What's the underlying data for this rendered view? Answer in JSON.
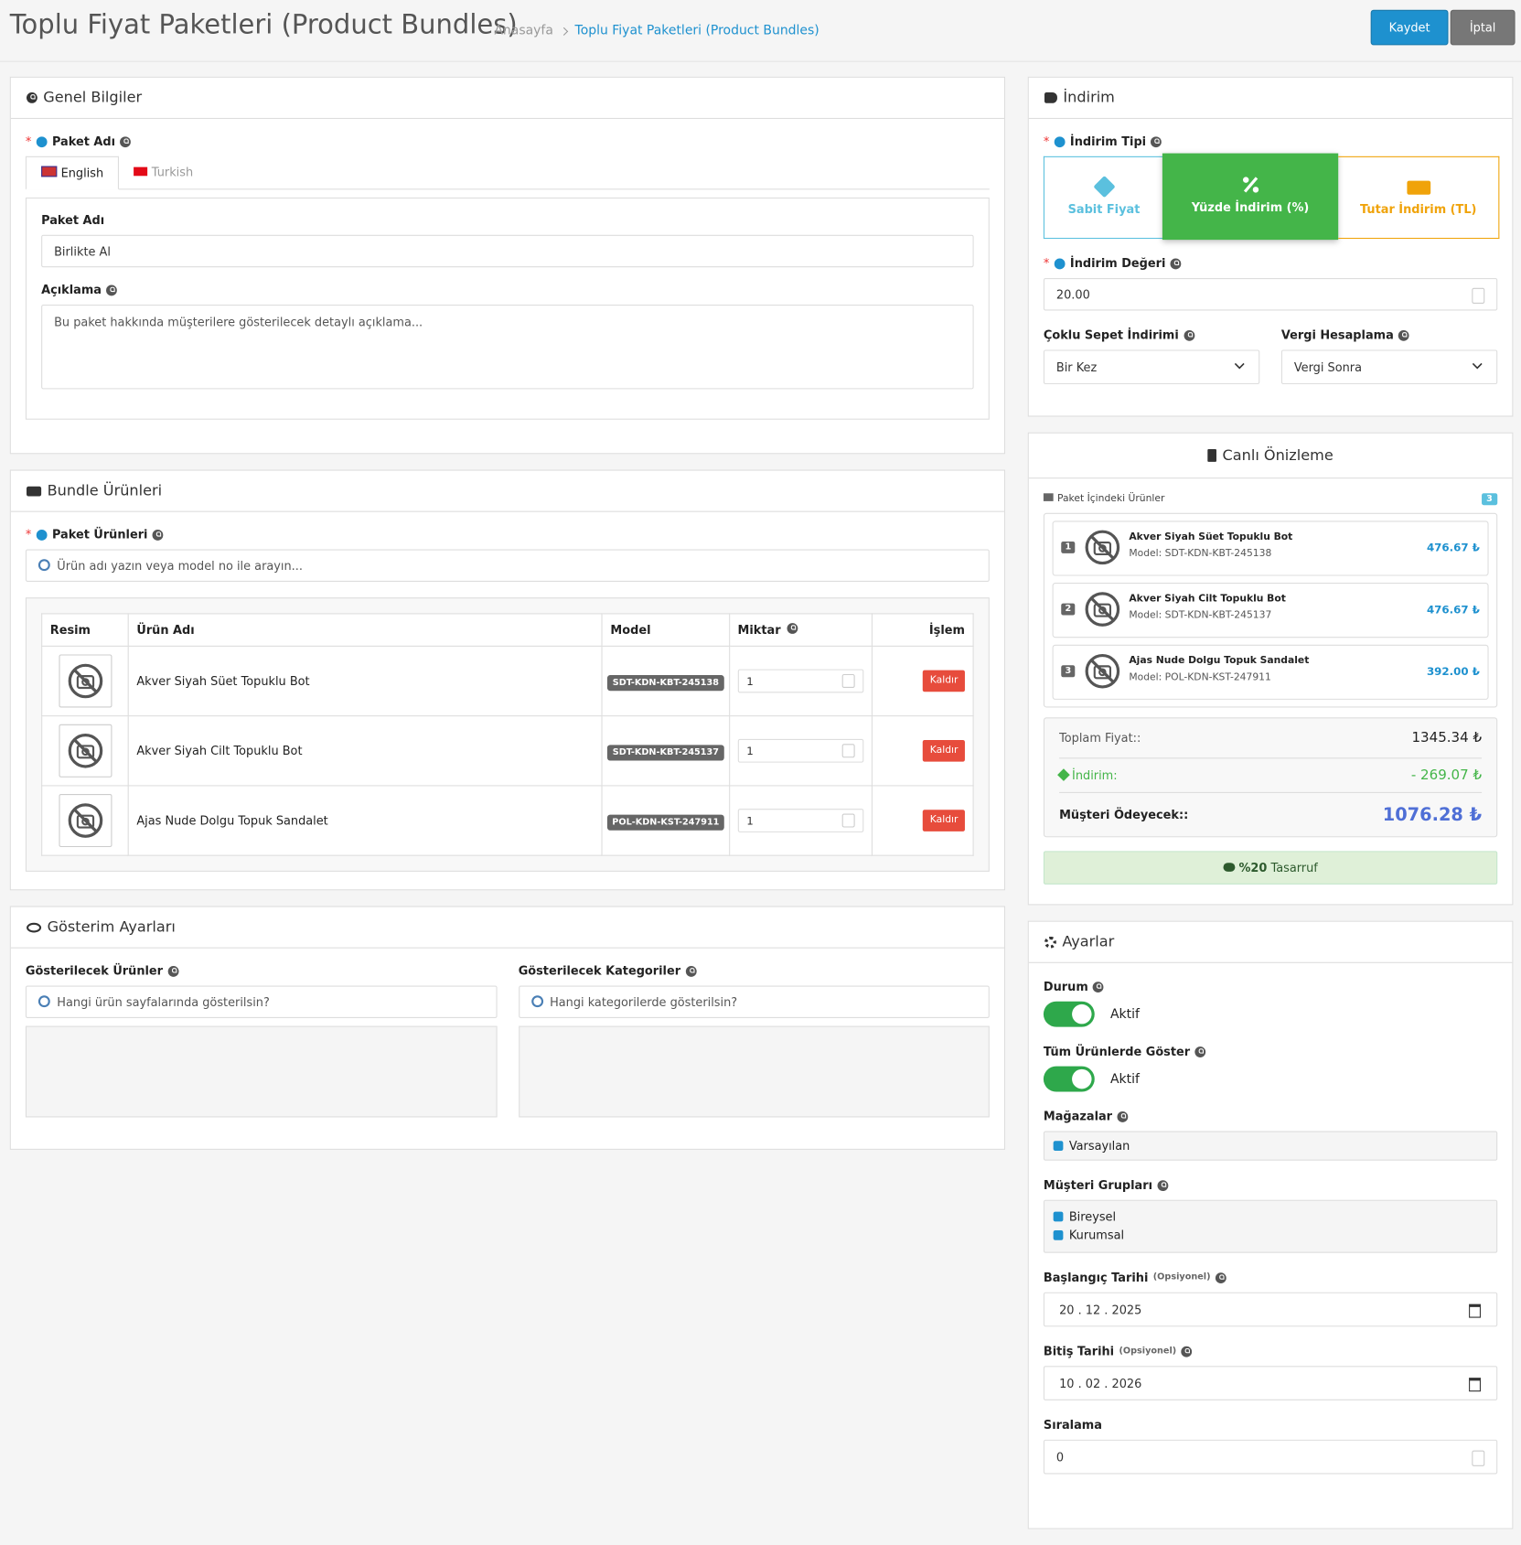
{
  "required_mark": "*",
  "header": {
    "title": "Toplu Fiyat Paketleri (Product Bundles)",
    "breadcrumb": [
      "Anasayfa",
      "Toplu Fiyat Paketleri (Product Bundles)"
    ],
    "buttons": [
      "Kaydet",
      "İptal"
    ]
  },
  "general": {
    "title": "Genel Bilgiler",
    "name_label": "Paket Adı",
    "tabs": [
      "English",
      "Turkish"
    ],
    "field_label": "Paket Adı",
    "name_value": "Birlikte Al",
    "desc_label": "Açıklama",
    "desc_placeholder": "Bu paket hakkında müşterilere gösterilecek detaylı açıklama..."
  },
  "bundle": {
    "title": "Bundle Ürünleri",
    "products_label": "Paket Ürünleri",
    "search_placeholder": "Ürün adı yazın veya model no ile arayın...",
    "table": {
      "columns": [
        "Resim",
        "Ürün Adı",
        "Model",
        "Miktar",
        "İşlem"
      ],
      "rows": [
        {
          "name": "Akver Siyah Süet Topuklu Bot",
          "model": "SDT-KDN-KBT-245138",
          "qty": "1",
          "action": "Kaldır"
        },
        {
          "name": "Akver Siyah Cilt Topuklu Bot",
          "model": "SDT-KDN-KBT-245137",
          "qty": "1",
          "action": "Kaldır"
        },
        {
          "name": "Ajas Nude Dolgu Topuk Sandalet",
          "model": "POL-KDN-KST-247911",
          "qty": "1",
          "action": "Kaldır"
        }
      ]
    }
  },
  "display": {
    "title": "Gösterim Ayarları",
    "products_label": "Gösterilecek Ürünler",
    "products_placeholder": "Hangi ürün sayfalarında gösterilsin?",
    "categories_label": "Gösterilecek Kategoriler",
    "categories_placeholder": "Hangi kategorilerde gösterilsin?"
  },
  "discount": {
    "title": "İndirim",
    "type_label": "İndirim Tipi",
    "options": [
      "Sabit Fiyat",
      "Yüzde İndirim (%)",
      "Tutar İndirim (TL)"
    ],
    "value_label": "İndirim Değeri",
    "value": "20.00",
    "multi_label": "Çoklu Sepet İndirimi",
    "multi_value": "Bir Kez",
    "tax_label": "Vergi Hesaplama",
    "tax_value": "Vergi Sonra"
  },
  "preview": {
    "title": "Canlı Önizleme",
    "products_label": "Paket İçindeki Ürünler",
    "count": "3",
    "items": [
      {
        "index": "1",
        "name": "Akver Siyah Süet Topuklu Bot",
        "model": "Model: SDT-KDN-KBT-245138",
        "price": "476.67 ₺"
      },
      {
        "index": "2",
        "name": "Akver Siyah Cilt Topuklu Bot",
        "model": "Model: SDT-KDN-KBT-245137",
        "price": "476.67 ₺"
      },
      {
        "index": "3",
        "name": "Ajas Nude Dolgu Topuk Sandalet",
        "model": "Model: POL-KDN-KST-247911",
        "price": "392.00 ₺"
      }
    ],
    "total_label": "Toplam Fiyat::",
    "total": "1345.34 ₺",
    "discount_label": "İndirim:",
    "discount": "- 269.07 ₺",
    "pay_label": "Müşteri Ödeyecek::",
    "pay": "1076.28 ₺",
    "savings_bold": "%20",
    "savings_text": "Tasarruf"
  },
  "settings": {
    "title": "Ayarlar",
    "status_label": "Durum",
    "status_value": "Aktif",
    "all_label": "Tüm Ürünlerde Göster",
    "all_value": "Aktif",
    "stores_label": "Mağazalar",
    "stores": [
      "Varsayılan"
    ],
    "groups_label": "Müşteri Grupları",
    "groups": [
      "Bireysel",
      "Kurumsal"
    ],
    "start_label": "Başlangıç Tarihi",
    "optional": "(Opsiyonel)",
    "start_value": "20 . 12 . 2025",
    "end_label": "Bitiş Tarihi",
    "end_value": "10 . 02 . 2026",
    "sort_label": "Sıralama",
    "sort_value": "0"
  }
}
